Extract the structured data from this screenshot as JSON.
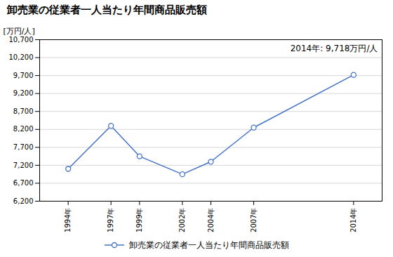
{
  "chart_data": {
    "type": "line",
    "title": "卸売業の従業者一人当たり年間商品販売額",
    "y_label": "[万円/人]",
    "annotation": "2014年: 9,718万円/人",
    "x": [
      1994,
      1997,
      1999,
      2002,
      2004,
      2007,
      2014
    ],
    "series": [
      {
        "name": "卸売業の従業者一人当たり年間商品販売額",
        "color": "#4472C4",
        "marker": "circle",
        "values": [
          7100,
          8300,
          7450,
          6950,
          7300,
          8250,
          9718
        ]
      }
    ],
    "xlim": [
      1992,
      2016
    ],
    "xticks": [
      {
        "value": 1994,
        "label": "1994年"
      },
      {
        "value": 1997,
        "label": "1997年"
      },
      {
        "value": 1999,
        "label": "1999年"
      },
      {
        "value": 2002,
        "label": "2002年"
      },
      {
        "value": 2004,
        "label": "2004年"
      },
      {
        "value": 2007,
        "label": "2007年"
      },
      {
        "value": 2014,
        "label": "2014年"
      }
    ],
    "ylim": [
      6200,
      10700
    ],
    "yticks": [
      {
        "value": 6200,
        "label": "6,200"
      },
      {
        "value": 6700,
        "label": "6,700"
      },
      {
        "value": 7200,
        "label": "7,200"
      },
      {
        "value": 7700,
        "label": "7,700"
      },
      {
        "value": 8200,
        "label": "8,200"
      },
      {
        "value": 8700,
        "label": "8,700"
      },
      {
        "value": 9200,
        "label": "9,200"
      },
      {
        "value": 9700,
        "label": "9,700"
      },
      {
        "value": 10200,
        "label": "10,200"
      },
      {
        "value": 10700,
        "label": "10,700"
      }
    ],
    "grid": true,
    "legend": "bottom"
  }
}
